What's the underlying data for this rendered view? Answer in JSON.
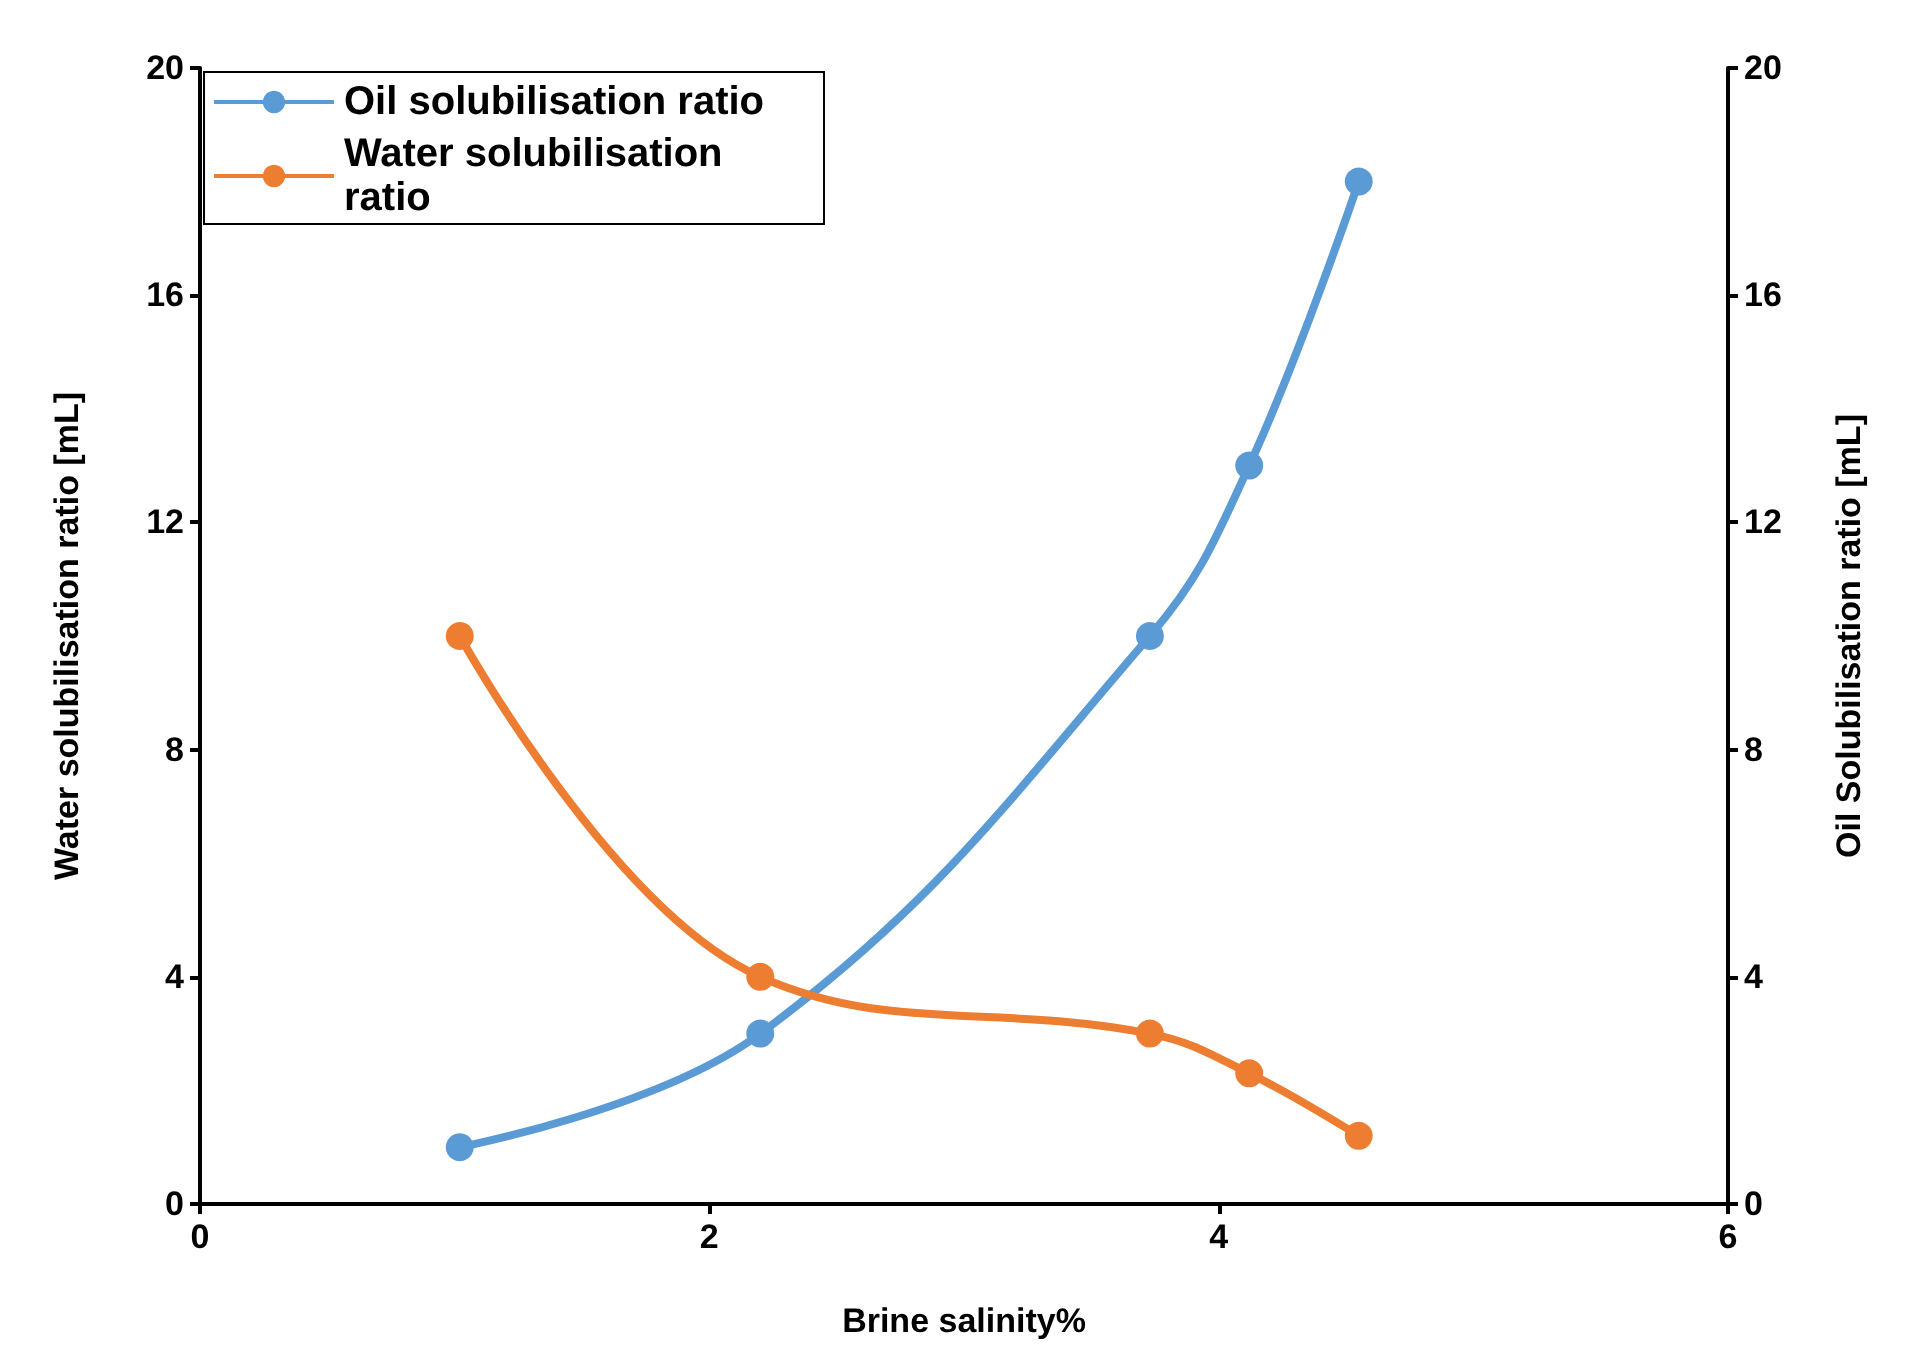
{
  "chart_data": {
    "type": "line",
    "xlabel": "Brine salinity%",
    "ylabel": "Water solubilisation ratio [mL]",
    "y2label": "Oil Solubilisation ratio [mL]",
    "xlim": [
      0,
      6
    ],
    "xticks": [
      0,
      2,
      4,
      6
    ],
    "ylim": [
      0,
      20
    ],
    "yticks": [
      0,
      4,
      8,
      12,
      16,
      20
    ],
    "y2lim": [
      0,
      20
    ],
    "y2ticks": [
      0,
      4,
      8,
      12,
      16,
      20
    ],
    "grid": false,
    "legend": "top left",
    "marker": "circle",
    "line_style": "solid",
    "series": [
      {
        "name": "Oil solubilisation ratio",
        "color": "#5b9bd5",
        "x": [
          1.02,
          2.2,
          3.73,
          4.12,
          4.55
        ],
        "values": [
          1,
          3,
          10,
          13,
          18
        ]
      },
      {
        "name": "Water solubilisation ratio",
        "color": "#ed7d31",
        "x": [
          1.02,
          2.2,
          3.73,
          4.12,
          4.55
        ],
        "values": [
          10,
          4,
          3,
          2.3,
          1.2
        ]
      }
    ]
  }
}
